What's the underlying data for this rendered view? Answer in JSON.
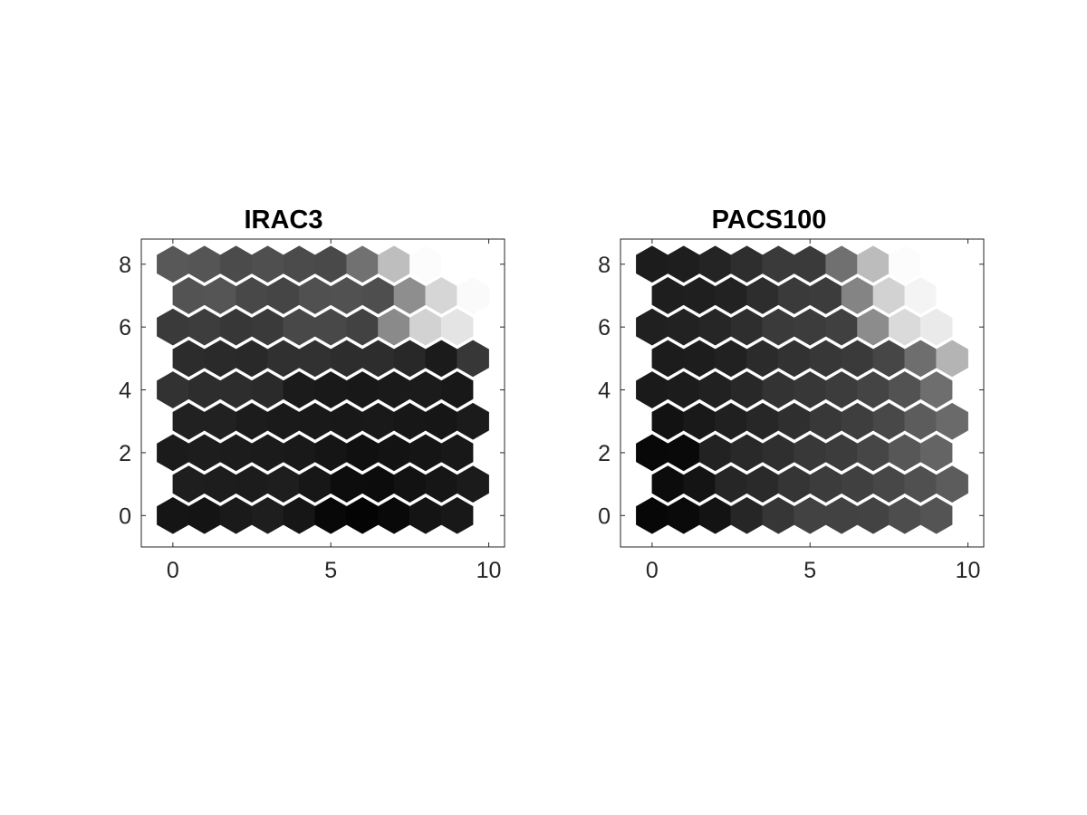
{
  "chart_data": [
    {
      "type": "heatmap",
      "subtype": "hexagonal-som",
      "title": "IRAC3",
      "xlim": [
        -1,
        10.5
      ],
      "ylim": [
        -1,
        8.8
      ],
      "xticks": [
        0,
        5,
        10
      ],
      "yticks": [
        0,
        2,
        4,
        6,
        8
      ],
      "grid": false,
      "colormap": "gray",
      "cells_note": "rows = hex rows y=0..8 (bottom to top); odd rows offset by +0.5 in x; values = gray level 0 (black) to 255 (white)",
      "rows": [
        [
          21,
          20,
          26,
          30,
          22,
          8,
          4,
          9,
          20,
          24
        ],
        [
          30,
          29,
          28,
          30,
          23,
          13,
          12,
          18,
          22,
          27
        ],
        [
          27,
          29,
          28,
          27,
          25,
          21,
          16,
          19,
          21,
          24
        ],
        [
          33,
          33,
          28,
          26,
          25,
          24,
          25,
          23,
          22,
          27
        ],
        [
          50,
          45,
          45,
          42,
          27,
          25,
          24,
          26,
          27,
          24
        ],
        [
          44,
          42,
          41,
          48,
          49,
          45,
          45,
          40,
          27,
          55
        ],
        [
          58,
          61,
          55,
          58,
          72,
          72,
          66,
          138,
          210,
          228
        ],
        [
          83,
          85,
          72,
          69,
          80,
          81,
          78,
          142,
          214,
          250
        ],
        [
          88,
          85,
          75,
          79,
          75,
          73,
          113,
          190,
          252,
          255
        ]
      ]
    },
    {
      "type": "heatmap",
      "subtype": "hexagonal-som",
      "title": "PACS100",
      "xlim": [
        -1,
        10.5
      ],
      "ylim": [
        -1,
        8.8
      ],
      "xticks": [
        0,
        5,
        10
      ],
      "yticks": [
        0,
        2,
        4,
        6,
        8
      ],
      "grid": false,
      "colormap": "gray",
      "cells_note": "rows = hex rows y=0..8 (bottom to top); odd rows offset by +0.5 in x; values = gray level 0 (black) to 255 (white)",
      "rows": [
        [
          7,
          10,
          19,
          38,
          54,
          66,
          66,
          67,
          77,
          84
        ],
        [
          12,
          20,
          38,
          42,
          53,
          60,
          64,
          71,
          80,
          92
        ],
        [
          8,
          9,
          34,
          41,
          47,
          56,
          60,
          70,
          87,
          100
        ],
        [
          18,
          25,
          32,
          39,
          47,
          56,
          62,
          72,
          92,
          106
        ],
        [
          26,
          28,
          33,
          40,
          51,
          55,
          60,
          68,
          82,
          110
        ],
        [
          28,
          29,
          33,
          43,
          50,
          55,
          58,
          70,
          110,
          180
        ],
        [
          32,
          34,
          38,
          46,
          58,
          60,
          64,
          140,
          218,
          234
        ],
        [
          30,
          31,
          34,
          45,
          58,
          60,
          132,
          210,
          244,
          255
        ],
        [
          28,
          30,
          36,
          46,
          58,
          58,
          112,
          188,
          252,
          255
        ]
      ]
    }
  ]
}
